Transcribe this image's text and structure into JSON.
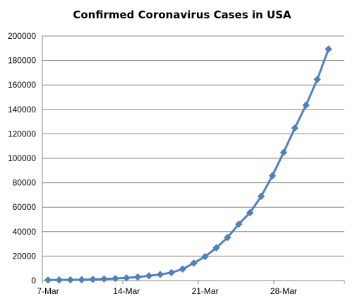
{
  "chart_data": {
    "type": "line",
    "title": "Confirmed Coronavirus Cases in USA",
    "xlabel": "",
    "ylabel": "",
    "ylim": [
      0,
      200000
    ],
    "y_ticks": [
      0,
      20000,
      40000,
      60000,
      80000,
      100000,
      120000,
      140000,
      160000,
      180000,
      200000
    ],
    "y_tick_labels": [
      "0",
      "20000",
      "40000",
      "60000",
      "80000",
      "100000",
      "120000",
      "140000",
      "160000",
      "180000",
      "200000"
    ],
    "x_tick_labels": [
      "7-Mar",
      "14-Mar",
      "21-Mar",
      "28-Mar"
    ],
    "x": [
      "2020-03-07",
      "2020-03-08",
      "2020-03-09",
      "2020-03-10",
      "2020-03-11",
      "2020-03-12",
      "2020-03-13",
      "2020-03-14",
      "2020-03-15",
      "2020-03-16",
      "2020-03-17",
      "2020-03-18",
      "2020-03-19",
      "2020-03-20",
      "2020-03-21",
      "2020-03-22",
      "2020-03-23",
      "2020-03-24",
      "2020-03-25",
      "2020-03-26",
      "2020-03-27",
      "2020-03-28",
      "2020-03-29",
      "2020-03-30",
      "2020-03-31",
      "2020-04-01"
    ],
    "series": [
      {
        "values": [
          400,
          500,
          600,
          700,
          1000,
          1300,
          1700,
          2200,
          2900,
          3900,
          5000,
          6500,
          9400,
          14300,
          19600,
          26700,
          35200,
          46100,
          55500,
          68900,
          85700,
          104800,
          124700,
          143500,
          164500,
          189300
        ],
        "color": "#4f81bd",
        "marker": "diamond"
      }
    ],
    "grid": "horizontal",
    "legend": "none"
  }
}
